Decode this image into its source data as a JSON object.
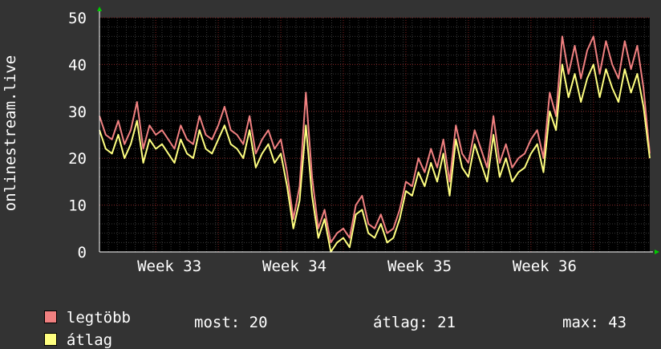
{
  "chart_data": {
    "type": "line",
    "ylabel": "onlinestream.live",
    "ylim": [
      0,
      50
    ],
    "yticks": [
      0,
      10,
      20,
      30,
      40,
      50
    ],
    "xlim": [
      32.55,
      36.95
    ],
    "xticks": [
      {
        "label": "Week 33",
        "value": 33
      },
      {
        "label": "Week 34",
        "value": 34
      },
      {
        "label": "Week 35",
        "value": 35
      },
      {
        "label": "Week 36",
        "value": 36
      }
    ],
    "grid": true,
    "legend_position": "bottom-left",
    "series": [
      {
        "name": "legtöbb",
        "color": "#f08080",
        "x": [
          32.55,
          32.6,
          32.65,
          32.7,
          32.75,
          32.8,
          32.85,
          32.9,
          32.95,
          33.0,
          33.05,
          33.1,
          33.15,
          33.2,
          33.25,
          33.3,
          33.35,
          33.4,
          33.45,
          33.5,
          33.55,
          33.6,
          33.65,
          33.7,
          33.75,
          33.8,
          33.85,
          33.9,
          33.95,
          34.0,
          34.05,
          34.1,
          34.15,
          34.2,
          34.25,
          34.3,
          34.35,
          34.4,
          34.45,
          34.5,
          34.55,
          34.6,
          34.65,
          34.7,
          34.75,
          34.8,
          34.85,
          34.9,
          34.95,
          35.0,
          35.05,
          35.1,
          35.15,
          35.2,
          35.25,
          35.3,
          35.35,
          35.4,
          35.45,
          35.5,
          35.55,
          35.6,
          35.65,
          35.7,
          35.75,
          35.8,
          35.85,
          35.9,
          35.95,
          36.0,
          36.05,
          36.1,
          36.15,
          36.2,
          36.25,
          36.3,
          36.35,
          36.4,
          36.45,
          36.5,
          36.55,
          36.6,
          36.65,
          36.7,
          36.75,
          36.8,
          36.85,
          36.9,
          36.95
        ],
        "values": [
          29,
          25,
          24,
          28,
          23,
          26,
          32,
          22,
          27,
          25,
          26,
          24,
          22,
          27,
          24,
          23,
          29,
          25,
          24,
          27,
          31,
          26,
          25,
          23,
          29,
          21,
          24,
          26,
          22,
          24,
          17,
          7,
          14,
          34,
          16,
          5,
          9,
          2,
          4,
          5,
          3,
          10,
          12,
          6,
          5,
          8,
          4,
          5,
          9,
          15,
          14,
          20,
          17,
          22,
          18,
          24,
          15,
          27,
          21,
          19,
          26,
          22,
          18,
          29,
          19,
          23,
          18,
          20,
          21,
          24,
          26,
          20,
          34,
          29,
          46,
          38,
          44,
          37,
          43,
          46,
          38,
          45,
          40,
          37,
          45,
          39,
          44,
          35,
          21
        ]
      },
      {
        "name": "átlag",
        "color": "#ffff80",
        "x": [
          32.55,
          32.6,
          32.65,
          32.7,
          32.75,
          32.8,
          32.85,
          32.9,
          32.95,
          33.0,
          33.05,
          33.1,
          33.15,
          33.2,
          33.25,
          33.3,
          33.35,
          33.4,
          33.45,
          33.5,
          33.55,
          33.6,
          33.65,
          33.7,
          33.75,
          33.8,
          33.85,
          33.9,
          33.95,
          34.0,
          34.05,
          34.1,
          34.15,
          34.2,
          34.25,
          34.3,
          34.35,
          34.4,
          34.45,
          34.5,
          34.55,
          34.6,
          34.65,
          34.7,
          34.75,
          34.8,
          34.85,
          34.9,
          34.95,
          35.0,
          35.05,
          35.1,
          35.15,
          35.2,
          35.25,
          35.3,
          35.35,
          35.4,
          35.45,
          35.5,
          35.55,
          35.6,
          35.65,
          35.7,
          35.75,
          35.8,
          35.85,
          35.9,
          35.95,
          36.0,
          36.05,
          36.1,
          36.15,
          36.2,
          36.25,
          36.3,
          36.35,
          36.4,
          36.45,
          36.5,
          36.55,
          36.6,
          36.65,
          36.7,
          36.75,
          36.8,
          36.85,
          36.9,
          36.95
        ],
        "values": [
          26,
          22,
          21,
          25,
          20,
          23,
          28,
          19,
          24,
          22,
          23,
          21,
          19,
          24,
          21,
          20,
          26,
          22,
          21,
          24,
          27,
          23,
          22,
          20,
          26,
          18,
          21,
          23,
          19,
          21,
          14,
          5,
          11,
          27,
          12,
          3,
          7,
          0,
          2,
          3,
          1,
          8,
          9,
          4,
          3,
          6,
          2,
          3,
          7,
          13,
          12,
          17,
          14,
          19,
          15,
          21,
          12,
          24,
          18,
          16,
          23,
          19,
          15,
          25,
          16,
          20,
          15,
          17,
          18,
          21,
          23,
          17,
          30,
          26,
          40,
          33,
          38,
          32,
          37,
          40,
          33,
          39,
          35,
          32,
          39,
          34,
          38,
          31,
          20
        ]
      }
    ]
  },
  "stats": {
    "most_label": "most:",
    "most_value": "20",
    "avg_label": "átlag:",
    "avg_value": "21",
    "max_label": "max:",
    "max_value": "43"
  }
}
